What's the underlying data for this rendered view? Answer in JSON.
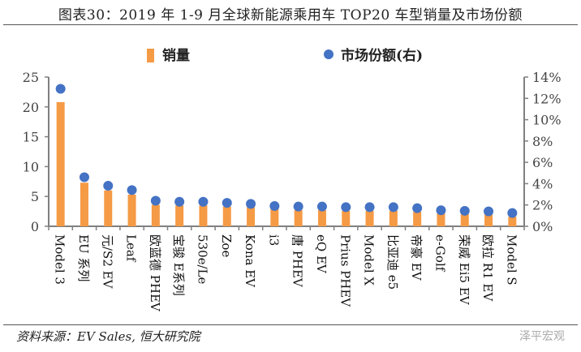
{
  "title": "图表30：2019 年 1-9 月全球新能源乘用车 TOP20 车型销量及市场份额",
  "source": "资料来源：EV Sales, 恒大研究院",
  "watermark": "泽平宏观",
  "colors": {
    "bar": "#F59A45",
    "dot": "#4472C4",
    "axis": "#808080"
  },
  "chart_data": {
    "type": "bar",
    "title": "图表30：2019 年 1-9 月全球新能源乘用车 TOP20 车型销量及市场份额",
    "categories": [
      "Model 3",
      "EU 系列",
      "元/S2 EV",
      "Leaf",
      "欧蓝德 PHEV",
      "宝骏 E系列",
      "530e/Le",
      "Zoe",
      "Kona EV",
      "i3",
      "唐 PHEV",
      "eQ EV",
      "Prius PHEV",
      "Model X",
      "比亚迪 e5",
      "帝豪 EV",
      "e-Golf",
      "荣威 Ei5 EV",
      "欧拉 R1 EV",
      "Model S"
    ],
    "series": [
      {
        "name": "销量",
        "type": "bar",
        "axis": "left",
        "values": [
          20.8,
          7.3,
          6.0,
          5.3,
          3.6,
          3.5,
          3.5,
          3.3,
          3.2,
          2.9,
          2.7,
          2.7,
          2.6,
          2.6,
          2.6,
          2.45,
          2.2,
          2.1,
          2.0,
          1.6
        ]
      },
      {
        "name": "市场份额(右)",
        "type": "scatter",
        "axis": "right",
        "values": [
          12.9,
          4.6,
          3.8,
          3.4,
          2.4,
          2.3,
          2.3,
          2.2,
          2.1,
          1.9,
          1.85,
          1.85,
          1.8,
          1.8,
          1.8,
          1.7,
          1.5,
          1.45,
          1.4,
          1.25
        ]
      }
    ],
    "yleft": {
      "lim": [
        0,
        25
      ],
      "ticks": [
        "0",
        "5",
        "10",
        "15",
        "20",
        "25"
      ]
    },
    "yright": {
      "lim": [
        0,
        14
      ],
      "ticks": [
        "0%",
        "2%",
        "4%",
        "6%",
        "8%",
        "10%",
        "12%",
        "14%"
      ]
    },
    "legend": "top-center",
    "grid": false
  }
}
